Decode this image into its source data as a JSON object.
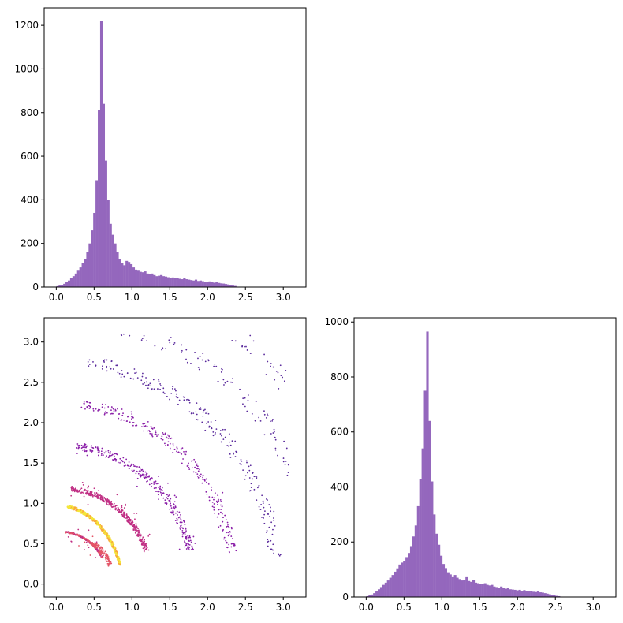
{
  "chart_data": [
    {
      "type": "histogram",
      "panel": "top-left",
      "color": "#9467bd",
      "bin_width": 0.0305,
      "bins_start": 0.0,
      "xlim": [
        -0.16,
        3.3
      ],
      "ylim": [
        0,
        1280
      ],
      "xticks": [
        0.0,
        0.5,
        1.0,
        1.5,
        2.0,
        2.5,
        3.0
      ],
      "xtick_labels": [
        "0.0",
        "0.5",
        "1.0",
        "1.5",
        "2.0",
        "2.5",
        "3.0"
      ],
      "yticks": [
        0,
        200,
        400,
        600,
        800,
        1000,
        1200
      ],
      "ytick_labels": [
        "0",
        "200",
        "400",
        "600",
        "800",
        "1000",
        "1200"
      ],
      "values": [
        4,
        7,
        10,
        15,
        22,
        30,
        40,
        50,
        62,
        75,
        90,
        110,
        130,
        160,
        200,
        260,
        340,
        490,
        810,
        1220,
        840,
        580,
        400,
        290,
        240,
        200,
        160,
        130,
        110,
        100,
        120,
        115,
        105,
        90,
        80,
        75,
        70,
        68,
        72,
        62,
        58,
        62,
        55,
        50,
        52,
        55,
        50,
        48,
        45,
        42,
        44,
        40,
        42,
        38,
        36,
        40,
        36,
        34,
        32,
        30,
        34,
        28,
        30,
        27,
        25,
        24,
        26,
        22,
        20,
        22,
        19,
        17,
        16,
        14,
        12,
        10,
        7,
        5
      ],
      "title": "",
      "xlabel": "",
      "ylabel": ""
    },
    {
      "type": "scatter",
      "panel": "bottom-left",
      "colormap": [
        "#5a2a9c",
        "#8a1ea8",
        "#c02f84",
        "#e45466",
        "#f8a83c",
        "#f4e63a"
      ],
      "xlim": [
        -0.16,
        3.3
      ],
      "ylim": [
        -0.16,
        3.3
      ],
      "xticks": [
        0.0,
        0.5,
        1.0,
        1.5,
        2.0,
        2.5,
        3.0
      ],
      "xtick_labels": [
        "0.0",
        "0.5",
        "1.0",
        "1.5",
        "2.0",
        "2.5",
        "3.0"
      ],
      "yticks": [
        0.0,
        0.5,
        1.0,
        1.5,
        2.0,
        2.5,
        3.0
      ],
      "ytick_labels": [
        "0.0",
        "0.5",
        "1.0",
        "1.5",
        "2.0",
        "2.5",
        "3.0"
      ],
      "description_arcs": [
        0.63,
        1.2,
        1.76,
        2.3,
        2.85,
        3.4,
        3.95
      ],
      "title": "",
      "xlabel": "",
      "ylabel": ""
    },
    {
      "type": "histogram",
      "panel": "bottom-right",
      "color": "#9467bd",
      "bin_width": 0.0305,
      "bins_start": 0.0,
      "xlim": [
        -0.16,
        3.3
      ],
      "ylim": [
        0,
        1015
      ],
      "xticks": [
        0.0,
        0.5,
        1.0,
        1.5,
        2.0,
        2.5,
        3.0
      ],
      "xtick_labels": [
        "0.0",
        "0.5",
        "1.0",
        "1.5",
        "2.0",
        "2.5",
        "3.0"
      ],
      "yticks": [
        0,
        200,
        400,
        600,
        800,
        1000
      ],
      "ytick_labels": [
        "0",
        "200",
        "400",
        "600",
        "800",
        "1000"
      ],
      "values": [
        3,
        6,
        9,
        14,
        20,
        28,
        36,
        44,
        52,
        60,
        70,
        80,
        92,
        104,
        118,
        125,
        130,
        145,
        160,
        185,
        220,
        260,
        330,
        430,
        540,
        750,
        965,
        640,
        420,
        300,
        230,
        190,
        150,
        120,
        105,
        90,
        82,
        72,
        80,
        70,
        65,
        60,
        62,
        72,
        58,
        55,
        62,
        52,
        50,
        48,
        46,
        50,
        44,
        42,
        44,
        38,
        36,
        34,
        38,
        32,
        30,
        32,
        28,
        27,
        26,
        24,
        26,
        22,
        25,
        21,
        20,
        22,
        19,
        18,
        20,
        17,
        16,
        14,
        12,
        10,
        8,
        6,
        4,
        3
      ],
      "title": "",
      "xlabel": "",
      "ylabel": ""
    }
  ]
}
